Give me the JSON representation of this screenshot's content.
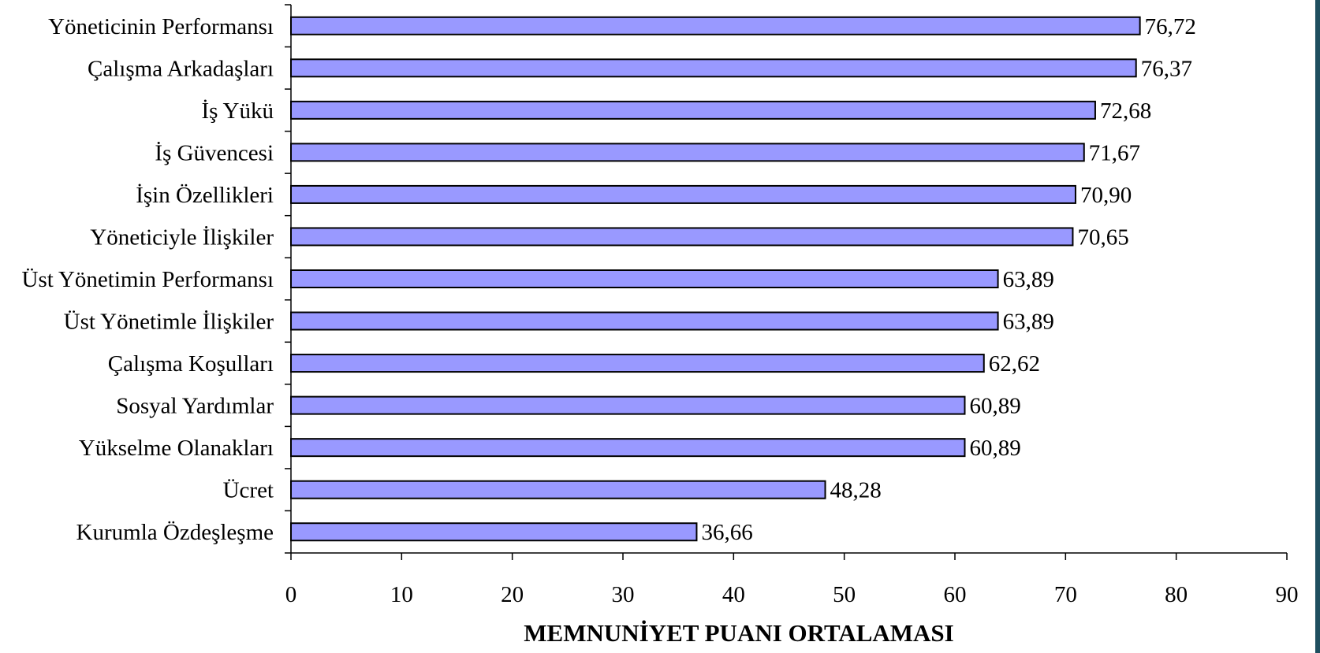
{
  "chart_data": {
    "type": "bar",
    "orientation": "horizontal",
    "categories": [
      "Yöneticinin Performansı",
      "Çalışma Arkadaşları",
      "İş Yükü",
      "İş Güvencesi",
      "İşin Özellikleri",
      "Yöneticiyle İlişkiler",
      "Üst Yönetimin Performansı",
      "Üst Yönetimle İlişkiler",
      "Çalışma Koşulları",
      "Sosyal Yardımlar",
      "Yükselme Olanakları",
      "Ücret",
      "Kurumla Özdeşleşme"
    ],
    "values": [
      76.72,
      76.37,
      72.68,
      71.67,
      70.9,
      70.65,
      63.89,
      63.89,
      62.62,
      60.89,
      60.89,
      48.28,
      36.66
    ],
    "data_labels": [
      "76,72",
      "76,37",
      "72,68",
      "71,67",
      "70,90",
      "70,65",
      "63,89",
      "63,89",
      "62,62",
      "60,89",
      "60,89",
      "48,28",
      "36,66"
    ],
    "xlabel": "MEMNUNİYET PUANI ORTALAMASI",
    "ylabel": "",
    "title": "",
    "xlim": [
      0,
      90
    ],
    "xticks": [
      0,
      10,
      20,
      30,
      40,
      50,
      60,
      70,
      80,
      90
    ],
    "xtick_labels": [
      "0",
      "10",
      "20",
      "30",
      "40",
      "50",
      "60",
      "70",
      "80",
      "90"
    ],
    "grid": false,
    "legend": "none",
    "colors": {
      "bar_fill": "#9999ff",
      "bar_stroke": "#000000",
      "axis": "#000000",
      "page_edge": "#1f4f5f"
    }
  }
}
